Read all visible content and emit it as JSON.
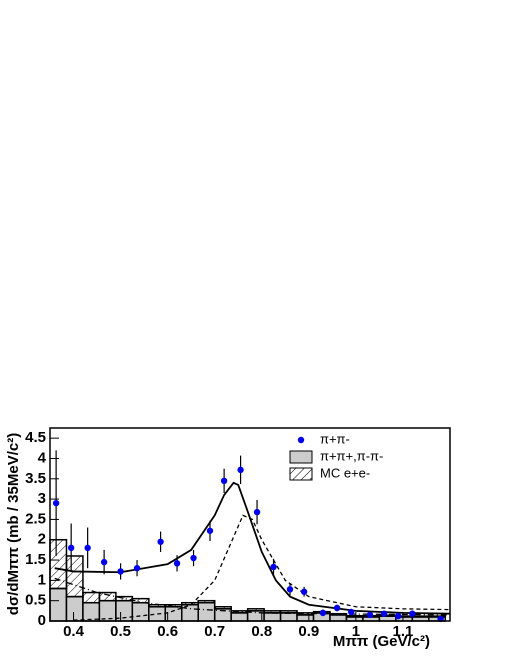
{
  "chart_data": {
    "type": "physics-plot",
    "xlabel": "Mππ (GeV/c²)",
    "ylabel": "dσ/dMππ (mb / 35MeV/c²)",
    "xlim": [
      0.35,
      1.2
    ],
    "ylim": [
      0,
      4.75
    ],
    "xticks": [
      0.4,
      0.5,
      0.6,
      0.7,
      0.8,
      0.9,
      1,
      1.1
    ],
    "yticks": [
      0,
      0.5,
      1,
      1.5,
      2,
      2.5,
      3,
      3.5,
      4,
      4.5
    ],
    "bins": [
      0.35,
      0.385,
      0.42,
      0.455,
      0.49,
      0.525,
      0.56,
      0.595,
      0.63,
      0.665,
      0.7,
      0.735,
      0.77,
      0.805,
      0.84,
      0.875,
      0.91,
      0.945,
      0.98,
      1.015,
      1.05,
      1.085,
      1.12,
      1.155,
      1.19
    ],
    "histograms": [
      {
        "name": "π+π+,π-π-",
        "color": "#cccccc",
        "values": [
          0.8,
          0.6,
          0.45,
          0.5,
          0.5,
          0.45,
          0.35,
          0.35,
          0.4,
          0.45,
          0.3,
          0.2,
          0.25,
          0.2,
          0.2,
          0.15,
          0.2,
          0.15,
          0.1,
          0.1,
          0.12,
          0.1,
          0.1,
          0.1
        ]
      },
      {
        "name": "MC e+e-",
        "color": "#000000",
        "values": [
          1.2,
          1.0,
          0.25,
          0.2,
          0.1,
          0.1,
          0.05,
          0.05,
          0.05,
          0.05,
          0.05,
          0.05,
          0.05,
          0.05,
          0.05,
          0.05,
          0.03,
          0.03,
          0.03,
          0.03,
          0.02,
          0.02,
          0.02,
          0.02
        ]
      }
    ],
    "points": {
      "name": "π+π-",
      "color": "#0000ee",
      "x": [
        0.363,
        0.395,
        0.43,
        0.465,
        0.5,
        0.535,
        0.585,
        0.62,
        0.655,
        0.69,
        0.72,
        0.755,
        0.79,
        0.825,
        0.86,
        0.89,
        0.93,
        0.96,
        0.99,
        1.03,
        1.06,
        1.09,
        1.12,
        1.18
      ],
      "values": [
        2.9,
        1.8,
        1.8,
        1.45,
        1.22,
        1.3,
        1.95,
        1.42,
        1.55,
        2.22,
        3.45,
        3.72,
        2.68,
        1.33,
        0.78,
        0.72,
        0.2,
        0.32,
        0.22,
        0.15,
        0.18,
        0.12,
        0.18,
        0.05
      ],
      "errors": [
        1.3,
        0.6,
        0.5,
        0.3,
        0.2,
        0.2,
        0.25,
        0.2,
        0.2,
        0.25,
        0.3,
        0.35,
        0.3,
        0.2,
        0.15,
        0.12,
        0.08,
        0.08,
        0.08,
        0.06,
        0.06,
        0.05,
        0.06,
        0.04
      ]
    },
    "curves": [
      {
        "style": "solid",
        "x": [
          0.36,
          0.4,
          0.5,
          0.6,
          0.65,
          0.7,
          0.72,
          0.74,
          0.75,
          0.77,
          0.8,
          0.83,
          0.86,
          0.9,
          1.0,
          1.1,
          1.2
        ],
        "values": [
          1.3,
          1.22,
          1.2,
          1.4,
          1.75,
          2.6,
          3.1,
          3.4,
          3.35,
          2.7,
          1.7,
          1.0,
          0.6,
          0.4,
          0.25,
          0.2,
          0.18
        ]
      },
      {
        "style": "dashed",
        "x": [
          0.4,
          0.5,
          0.6,
          0.65,
          0.7,
          0.73,
          0.76,
          0.78,
          0.8,
          0.85,
          0.9,
          1.0,
          1.1,
          1.2
        ],
        "values": [
          0.02,
          0.07,
          0.2,
          0.4,
          1.0,
          1.8,
          2.6,
          2.5,
          2.0,
          1.0,
          0.6,
          0.35,
          0.3,
          0.28
        ]
      },
      {
        "style": "dashdot",
        "x": [
          0.36,
          0.45,
          0.55,
          0.65,
          0.8,
          1.0,
          1.2
        ],
        "values": [
          1.05,
          0.7,
          0.45,
          0.3,
          0.2,
          0.17,
          0.15
        ]
      }
    ]
  }
}
